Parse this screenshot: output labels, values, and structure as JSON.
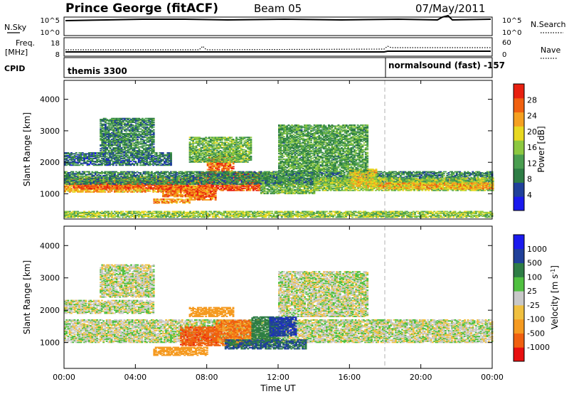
{
  "header": {
    "station": "Prince George (fitACF)",
    "beam": "Beam 05",
    "date": "07/May/2011"
  },
  "top_panels": {
    "nsky_label": "N.Sky",
    "nsky_ticks": [
      "10^5",
      "10^0"
    ],
    "nsearch_label": "N.Search",
    "nsearch_ticks": [
      "10^5",
      "10^0"
    ],
    "freq_label_1": "Freq.",
    "freq_label_2": "[MHz]",
    "freq_ticks": [
      "18",
      "8"
    ],
    "nave_label": "Nave",
    "nave_ticks": [
      "60",
      "0"
    ],
    "cpid_label": "CPID",
    "cpid_segments": [
      {
        "label": "themis 3300",
        "start_hour": 0
      },
      {
        "label": "normalsound (fast) -157",
        "start_hour": 18
      }
    ]
  },
  "x_axis": {
    "label": "Time UT",
    "ticks": [
      "00:00",
      "04:00",
      "08:00",
      "12:00",
      "16:00",
      "20:00",
      "00:00"
    ],
    "range_hours": [
      0,
      24
    ]
  },
  "colors": {
    "power": [
      "#1a1aee",
      "#20409a",
      "#2e7d45",
      "#4a9e50",
      "#8cc840",
      "#e8d820",
      "#f5a020",
      "#f06010",
      "#e82010"
    ],
    "velocity": [
      "#e81010",
      "#f06010",
      "#f59a20",
      "#f0c040",
      "#c8c8c8",
      "#50c040",
      "#2e7d45",
      "#20409a",
      "#1a1aee"
    ],
    "gray": "#c8c8c8"
  },
  "chart_data": [
    {
      "type": "heatmap",
      "name": "power",
      "title": "",
      "xlabel": "Time UT",
      "ylabel": "Slant Range [km]",
      "xlim": [
        0,
        24
      ],
      "ylim": [
        200,
        4600
      ],
      "y_ticks": [
        1000,
        2000,
        3000,
        4000
      ],
      "colorbar": {
        "label": "Power [dB]",
        "range": [
          0,
          32
        ],
        "ticks": [
          4,
          8,
          12,
          16,
          20,
          24,
          28
        ]
      },
      "blobs": [
        {
          "t0": 0.0,
          "t1": 7.5,
          "r0": 1050,
          "r1": 1550,
          "value": 22
        },
        {
          "t0": 0.5,
          "t1": 7.0,
          "r0": 1150,
          "r1": 1400,
          "value": 28
        },
        {
          "t0": 5.5,
          "t1": 8.0,
          "r0": 900,
          "r1": 1250,
          "value": 26
        },
        {
          "t0": 7.5,
          "t1": 11.0,
          "r0": 1100,
          "r1": 1700,
          "value": 28
        },
        {
          "t0": 8.0,
          "t1": 9.5,
          "r0": 1700,
          "r1": 2200,
          "value": 26
        },
        {
          "t0": 7.0,
          "t1": 8.5,
          "r0": 800,
          "r1": 1200,
          "value": 26
        },
        {
          "t0": 5.0,
          "t1": 7.0,
          "r0": 700,
          "r1": 850,
          "value": 24
        },
        {
          "t0": 11.0,
          "t1": 14.0,
          "r0": 1000,
          "r1": 1700,
          "value": 14
        },
        {
          "t0": 0.0,
          "t1": 24.0,
          "r0": 1300,
          "r1": 1700,
          "value": 10
        },
        {
          "t0": 14.0,
          "t1": 24.0,
          "r0": 1100,
          "r1": 1500,
          "value": 16
        },
        {
          "t0": 17.5,
          "t1": 24.0,
          "r0": 1150,
          "r1": 1350,
          "value": 22
        },
        {
          "t0": 16.0,
          "t1": 17.5,
          "r0": 1200,
          "r1": 1800,
          "value": 20
        },
        {
          "t0": 0.0,
          "t1": 6.0,
          "r0": 1900,
          "r1": 2300,
          "value": 8
        },
        {
          "t0": 2.0,
          "t1": 5.0,
          "r0": 2300,
          "r1": 3400,
          "value": 10
        },
        {
          "t0": 12.0,
          "t1": 17.0,
          "r0": 1700,
          "r1": 3200,
          "value": 12
        },
        {
          "t0": 7.0,
          "t1": 10.5,
          "r0": 2000,
          "r1": 2800,
          "value": 14
        },
        {
          "t0": 0.0,
          "t1": 24.0,
          "r0": 250,
          "r1": 450,
          "value": 16
        }
      ]
    },
    {
      "type": "heatmap",
      "name": "velocity",
      "title": "",
      "xlabel": "Time UT",
      "ylabel": "Slant Range [km]",
      "xlim": [
        0,
        24
      ],
      "ylim": [
        200,
        4600
      ],
      "y_ticks": [
        1000,
        2000,
        3000,
        4000
      ],
      "colorbar": {
        "label": "Velocity [m s^-1]",
        "ticks": [
          "1000",
          "500",
          "100",
          "25",
          "-25",
          "-100",
          "-500",
          "-1000"
        ]
      },
      "blobs": [
        {
          "t0": 0.0,
          "t1": 24.0,
          "r0": 1000,
          "r1": 1700,
          "value": 0
        },
        {
          "t0": 0.0,
          "t1": 5.0,
          "r0": 1900,
          "r1": 2300,
          "value": 0
        },
        {
          "t0": 2.0,
          "t1": 5.0,
          "r0": 2400,
          "r1": 3400,
          "value": 0
        },
        {
          "t0": 12.0,
          "t1": 17.0,
          "r0": 1800,
          "r1": 3200,
          "value": 0
        },
        {
          "t0": 6.5,
          "t1": 8.5,
          "r0": 900,
          "r1": 1500,
          "value": -700
        },
        {
          "t0": 8.5,
          "t1": 10.5,
          "r0": 900,
          "r1": 1700,
          "value": -300
        },
        {
          "t0": 10.5,
          "t1": 12.0,
          "r0": 1000,
          "r1": 1800,
          "value": 150
        },
        {
          "t0": 11.5,
          "t1": 13.0,
          "r0": 1200,
          "r1": 1800,
          "value": 700
        },
        {
          "t0": 9.0,
          "t1": 13.5,
          "r0": 800,
          "r1": 1100,
          "value": 300
        },
        {
          "t0": 5.0,
          "t1": 8.0,
          "r0": 600,
          "r1": 850,
          "value": -150
        },
        {
          "t0": 7.0,
          "t1": 9.5,
          "r0": 1800,
          "r1": 2100,
          "value": -200
        }
      ]
    }
  ]
}
